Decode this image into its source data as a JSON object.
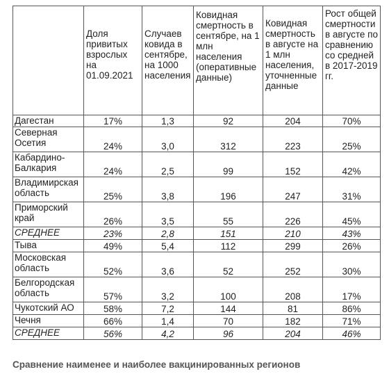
{
  "table": {
    "headers": [
      "",
      "Доля привитых взрослых на 01.09.2021",
      "Случаев ковида в сентябре, на 1000 населения",
      "Ковидная смертность в сентябре, на 1 млн населения (оперативные данные)",
      "Ковидная смертность в августе на 1 млн населения, уточненные данные",
      "Рост общей смертности в августе по сравнению со средней в 2017-2019 гг."
    ],
    "rows": [
      [
        "Дагестан",
        "17%",
        "1,3",
        "92",
        "204",
        "70%"
      ],
      [
        "Северная Осетия",
        "24%",
        "3,0",
        "312",
        "223",
        "25%"
      ],
      [
        "Кабардино-Балкария",
        "24%",
        "2,5",
        "99",
        "152",
        "42%"
      ],
      [
        "Владимирская область",
        "25%",
        "3,8",
        "196",
        "247",
        "31%"
      ],
      [
        "Приморский край",
        "26%",
        "3,5",
        "55",
        "226",
        "45%"
      ],
      [
        "СРЕДНЕЕ",
        "23%",
        "2,8",
        "151",
        "210",
        "43%"
      ],
      [
        "Тыва",
        "49%",
        "5,4",
        "112",
        "299",
        "26%"
      ],
      [
        "Московская область",
        "52%",
        "3,6",
        "52",
        "252",
        "30%"
      ],
      [
        "Белгородская область",
        "57%",
        "3,2",
        "100",
        "208",
        "17%"
      ],
      [
        "Чукотский АО",
        "58%",
        "7,2",
        "144",
        "81",
        "86%"
      ],
      [
        "Чечня",
        "66%",
        "1,4",
        "70",
        "182",
        "71%"
      ],
      [
        "СРЕДНЕЕ",
        "56%",
        "4,2",
        "96",
        "204",
        "46%"
      ]
    ]
  },
  "caption": "Сравнение наименее и наиболее вакцинированных регионов"
}
